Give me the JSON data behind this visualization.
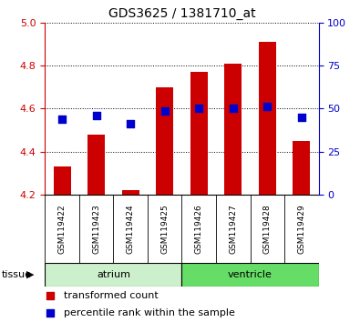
{
  "title": "GDS3625 / 1381710_at",
  "samples": [
    "GSM119422",
    "GSM119423",
    "GSM119424",
    "GSM119425",
    "GSM119426",
    "GSM119427",
    "GSM119428",
    "GSM119429"
  ],
  "red_values": [
    4.33,
    4.48,
    4.22,
    4.7,
    4.77,
    4.81,
    4.91,
    4.45
  ],
  "blue_values": [
    4.55,
    4.57,
    4.53,
    4.59,
    4.6,
    4.6,
    4.61,
    4.56
  ],
  "red_base": 4.2,
  "ylim_left": [
    4.2,
    5.0
  ],
  "ylim_right": [
    0,
    100
  ],
  "yticks_left": [
    4.2,
    4.4,
    4.6,
    4.8,
    5.0
  ],
  "yticks_right": [
    0,
    25,
    50,
    75,
    100
  ],
  "tissue_groups": [
    {
      "label": "atrium",
      "samples": [
        0,
        1,
        2,
        3
      ],
      "color": "#ccf0cc"
    },
    {
      "label": "ventricle",
      "samples": [
        4,
        5,
        6,
        7
      ],
      "color": "#66dd66"
    }
  ],
  "bar_color": "#cc0000",
  "dot_color": "#0000cc",
  "bar_width": 0.5,
  "dot_size": 35,
  "grid_color": "#000000",
  "bg_color": "#ffffff",
  "left_tick_color": "#cc0000",
  "right_tick_color": "#0000cc",
  "legend_red": "transformed count",
  "legend_blue": "percentile rank within the sample",
  "sample_box_color": "#d8d8d8",
  "title_fontsize": 10,
  "tick_fontsize": 8,
  "sample_fontsize": 6.5,
  "tissue_fontsize": 8,
  "legend_fontsize": 8
}
